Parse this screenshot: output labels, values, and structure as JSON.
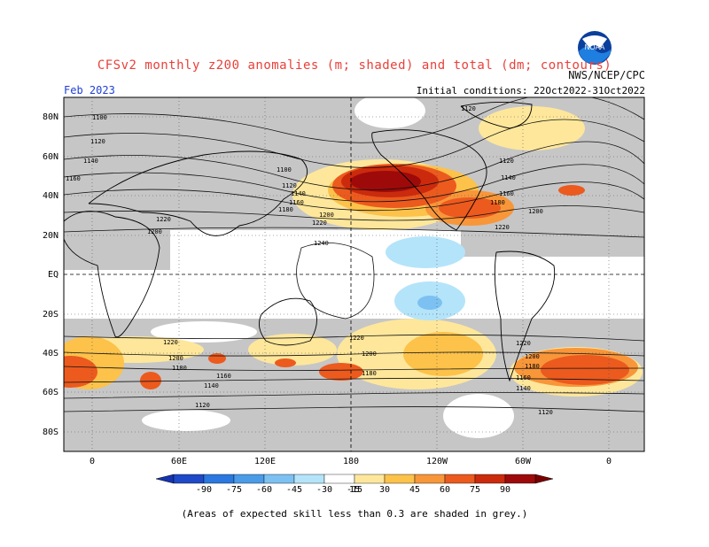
{
  "title": "CFSv2 monthly z200 anomalies (m; shaded) and total (dm; contours)",
  "forecast_month": "Feb 2023",
  "agency": "NWS/NCEP/CPC",
  "logo_text": "NOAA",
  "initial_conditions": "Initial conditions: 22Oct2022-31Oct2022",
  "latitude_labels": [
    "80N",
    "60N",
    "40N",
    "20N",
    "EQ",
    "20S",
    "40S",
    "60S",
    "80S"
  ],
  "longitude_labels": [
    "0",
    "60E",
    "120E",
    "180",
    "120W",
    "60W",
    "0"
  ],
  "colorbar": {
    "ticks": [
      "-90",
      "-75",
      "-60",
      "-45",
      "-30",
      "-15",
      "15",
      "30",
      "45",
      "60",
      "75",
      "90"
    ],
    "colors": [
      "#1e49c8",
      "#2a78e0",
      "#4a9be8",
      "#7cc1f2",
      "#b4e4fa",
      "#ffffff",
      "#fee79b",
      "#fcc24a",
      "#f8963a",
      "#ec5a1e",
      "#cc2a0c",
      "#9e0a0a"
    ]
  },
  "contour_labels": {
    "l1100a": "1100",
    "l1120a": "1120",
    "l1140a": "1140",
    "l1160a": "1160",
    "l1100b": "1100",
    "l1120b": "1120",
    "l1140b": "1140",
    "l1160b": "1160",
    "l1180b": "1180",
    "l1200a": "1200",
    "l1220a": "1220",
    "l1220b": "1220",
    "l1240a": "1240",
    "l1200b": "1200",
    "l1120c": "1120",
    "l1140c": "1140",
    "l1160c": "1160",
    "l1180c": "1180",
    "l1200c": "1200",
    "l1220c": "1220",
    "l1220d": "1220",
    "l1200d": "1200",
    "l1180d": "1180",
    "l1160d": "1160",
    "l1140d": "1140",
    "l1120d": "1120",
    "l1220e": "1220",
    "l1200e": "1200",
    "l1180e": "1180",
    "l1220f": "1220",
    "l1200f": "1200",
    "l1180f": "1180",
    "l1160f": "1160",
    "l1140f": "1140",
    "l1120f": "1120",
    "l1120e": "1120"
  },
  "footnote": "(Areas of expected skill less than 0.3 are shaded in grey.)"
}
